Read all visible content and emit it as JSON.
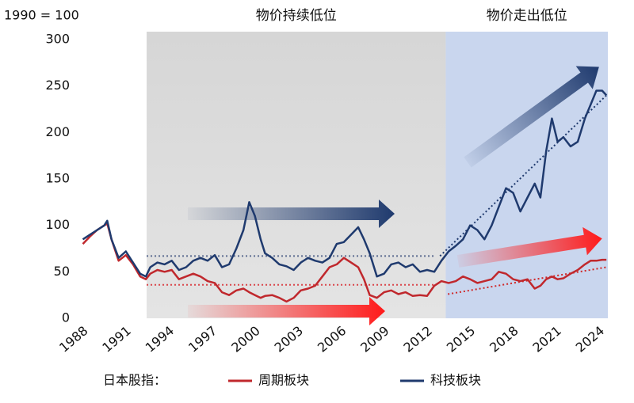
{
  "chart_data": {
    "type": "line",
    "y_axis_label": "1990 = 100",
    "periods": [
      {
        "label": "物价持续低位",
        "xlim": [
          1992.75,
          2013.6
        ],
        "color": "#d9d9d9"
      },
      {
        "label": "物价走出低位",
        "xlim": [
          2013.6,
          2024.9
        ],
        "color": "#c9d6ee"
      }
    ],
    "legend_title": "日本股指：",
    "xlim": [
      1987.5,
      2024.9
    ],
    "xticks": [
      1988,
      1991,
      1994,
      1997,
      2000,
      2003,
      2006,
      2009,
      2012,
      2015,
      2018,
      2021,
      2024
    ],
    "ylim": [
      0,
      300
    ],
    "yticks": [
      0,
      50,
      100,
      150,
      200,
      250,
      300
    ],
    "x": [
      1988.3,
      1988.8,
      1989.3,
      1989.8,
      1990.0,
      1990.3,
      1990.8,
      1991.3,
      1991.8,
      1992.3,
      1992.7,
      1993.0,
      1993.5,
      1994.0,
      1994.5,
      1995.0,
      1995.5,
      1996.0,
      1996.5,
      1997.0,
      1997.5,
      1998.0,
      1998.5,
      1999.0,
      1999.5,
      1999.9,
      2000.3,
      2000.7,
      2001.0,
      2001.5,
      2002.0,
      2002.5,
      2003.0,
      2003.5,
      2004.0,
      2004.5,
      2005.0,
      2005.5,
      2006.0,
      2006.5,
      2007.0,
      2007.5,
      2007.9,
      2008.3,
      2008.8,
      2009.3,
      2009.8,
      2010.3,
      2010.8,
      2011.3,
      2011.8,
      2012.3,
      2012.8,
      2013.3,
      2013.8,
      2014.3,
      2014.8,
      2015.3,
      2015.8,
      2016.3,
      2016.8,
      2017.3,
      2017.8,
      2018.3,
      2018.8,
      2019.3,
      2019.8,
      2020.2,
      2020.6,
      2021.0,
      2021.4,
      2021.8,
      2022.3,
      2022.8,
      2023.3,
      2023.7,
      2024.1,
      2024.5,
      2024.8
    ],
    "series": [
      {
        "name": "周期板块",
        "color": "#c0282d",
        "values": [
          80,
          88,
          95,
          100,
          102,
          85,
          62,
          68,
          58,
          45,
          42,
          48,
          52,
          50,
          52,
          42,
          45,
          48,
          45,
          40,
          38,
          28,
          25,
          30,
          32,
          28,
          25,
          22,
          24,
          25,
          22,
          18,
          22,
          30,
          32,
          35,
          45,
          55,
          58,
          65,
          60,
          55,
          42,
          25,
          22,
          28,
          30,
          26,
          28,
          24,
          25,
          24,
          35,
          40,
          38,
          40,
          45,
          42,
          38,
          40,
          42,
          50,
          48,
          42,
          40,
          42,
          32,
          35,
          42,
          45,
          42,
          43,
          48,
          52,
          58,
          62,
          62,
          63,
          63
        ]
      },
      {
        "name": "科技板块",
        "color": "#1f3a6e",
        "values": [
          85,
          90,
          95,
          100,
          105,
          85,
          65,
          72,
          60,
          48,
          45,
          55,
          60,
          58,
          62,
          52,
          55,
          62,
          65,
          62,
          68,
          55,
          58,
          75,
          95,
          125,
          110,
          85,
          70,
          65,
          58,
          56,
          52,
          60,
          65,
          62,
          60,
          65,
          80,
          82,
          90,
          98,
          85,
          70,
          45,
          48,
          58,
          60,
          55,
          58,
          50,
          52,
          50,
          62,
          72,
          78,
          85,
          100,
          95,
          85,
          100,
          120,
          140,
          135,
          115,
          130,
          145,
          130,
          180,
          215,
          190,
          195,
          185,
          190,
          215,
          230,
          245,
          245,
          240
        ]
      }
    ],
    "trend_lines": [
      {
        "color": "#5b6b8f",
        "x": [
          1992.75,
          2012.9
        ],
        "y": [
          67,
          67
        ]
      },
      {
        "color": "#d9454a",
        "x": [
          1992.75,
          2012.9
        ],
        "y": [
          36,
          36
        ]
      },
      {
        "color": "#1f3a6e",
        "x": [
          2013.2,
          2024.8
        ],
        "y": [
          67,
          240
        ]
      },
      {
        "color": "#d02828",
        "x": [
          2013.75,
          2024.8
        ],
        "y": [
          26,
          55
        ]
      }
    ]
  }
}
